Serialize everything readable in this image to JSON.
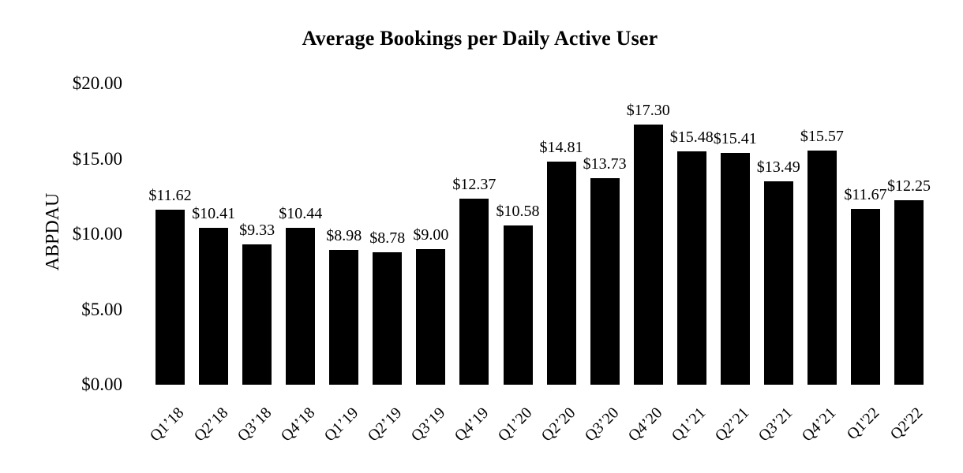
{
  "chart_data": {
    "type": "bar",
    "title": "Average Bookings per Daily Active User",
    "ylabel": "ABPDAU",
    "xlabel": "",
    "categories": [
      "Q1’18",
      "Q2’18",
      "Q3’18",
      "Q4’18",
      "Q1’19",
      "Q2’19",
      "Q3’19",
      "Q4’19",
      "Q1’20",
      "Q2’20",
      "Q3’20",
      "Q4’20",
      "Q1’21",
      "Q2’21",
      "Q3’21",
      "Q4’21",
      "Q1'22",
      "Q2'22"
    ],
    "values": [
      11.62,
      10.41,
      9.33,
      10.44,
      8.98,
      8.78,
      9.0,
      12.37,
      10.58,
      14.81,
      13.73,
      17.3,
      15.48,
      15.41,
      13.49,
      15.57,
      11.67,
      12.25
    ],
    "bar_labels": [
      "$11.62",
      "$10.41",
      "$9.33",
      "$10.44",
      "$8.98",
      "$8.78",
      "$9.00",
      "$12.37",
      "$10.58",
      "$14.81",
      "$13.73",
      "$17.30",
      "$15.48",
      "$15.41",
      "$13.49",
      "$15.57",
      "$11.67",
      "$12.25"
    ],
    "yticks": [
      {
        "value": 20,
        "label": "$20.00"
      },
      {
        "value": 15,
        "label": "$15.00"
      },
      {
        "value": 10,
        "label": "$10.00"
      },
      {
        "value": 5,
        "label": "$5.00"
      },
      {
        "value": 0,
        "label": "$0.00"
      }
    ],
    "ylim": [
      0,
      20
    ],
    "grid": false,
    "legend": null,
    "bar_color": "#000000",
    "text_color": "#000000",
    "background_color": "#ffffff"
  }
}
